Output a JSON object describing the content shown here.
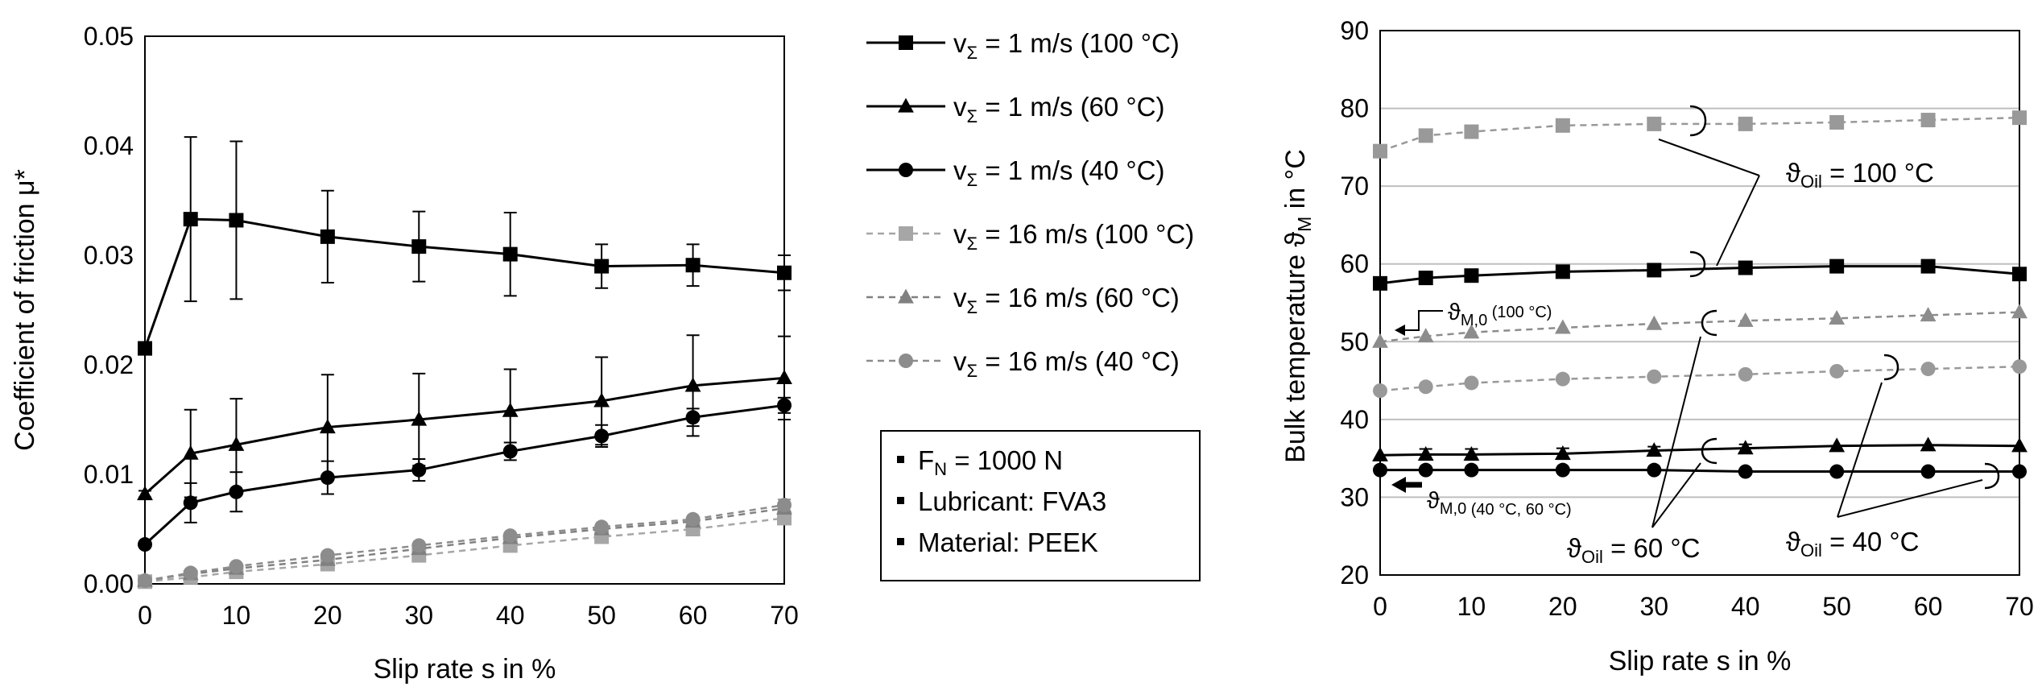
{
  "chart_data": [
    {
      "type": "line",
      "xlabel": "Slip rate s in %",
      "ylabel": "Coefficient of friction μ*",
      "xlim": [
        0,
        70
      ],
      "ylim": [
        0,
        0.05
      ],
      "x_ticks": [
        "0",
        "10",
        "20",
        "30",
        "40",
        "50",
        "60",
        "70"
      ],
      "y_ticks": [
        "0.00",
        "0.01",
        "0.02",
        "0.03",
        "0.04",
        "0.05"
      ],
      "grid": false,
      "x": [
        0,
        5,
        10,
        20,
        30,
        40,
        50,
        60,
        70
      ],
      "series": [
        {
          "name": "v_Σ = 1 m/s (100 °C)",
          "marker": "square",
          "color": "#000000",
          "dashed": false,
          "values": [
            0.0215,
            0.0333,
            0.0332,
            0.0317,
            0.0308,
            0.0301,
            0.029,
            0.0291,
            0.0284
          ],
          "errors": [
            0.0005,
            0.0075,
            0.0072,
            0.0042,
            0.0032,
            0.0038,
            0.002,
            0.0019,
            0.0016
          ]
        },
        {
          "name": "v_Σ = 1 m/s (60 °C)",
          "marker": "triangle",
          "color": "#000000",
          "dashed": false,
          "values": [
            0.0082,
            0.0119,
            0.0127,
            0.0143,
            0.015,
            0.0158,
            0.0167,
            0.0181,
            0.0188
          ],
          "errors": [
            0.0003,
            0.004,
            0.0042,
            0.0048,
            0.0042,
            0.0038,
            0.004,
            0.0046,
            0.0038
          ]
        },
        {
          "name": "v_Σ = 1 m/s (40 °C)",
          "marker": "circle",
          "color": "#000000",
          "dashed": false,
          "values": [
            0.0036,
            0.0074,
            0.0084,
            0.0097,
            0.0104,
            0.0121,
            0.0135,
            0.0152,
            0.0163
          ],
          "errors": [
            0.0002,
            0.0018,
            0.0018,
            0.0015,
            0.001,
            0.0008,
            0.001,
            0.0008,
            0.0007
          ]
        },
        {
          "name": "v_Σ = 16 m/s (100 °C)",
          "marker": "square",
          "color": "#a6a6a6",
          "dashed": true,
          "values": [
            0.0002,
            0.0006,
            0.0011,
            0.0018,
            0.0026,
            0.0035,
            0.0043,
            0.005,
            0.006
          ],
          "errors": [
            0,
            0,
            0,
            0,
            0,
            0,
            0,
            0,
            0.0005
          ]
        },
        {
          "name": "v_Σ = 16 m/s (60 °C)",
          "marker": "triangle",
          "color": "#808080",
          "dashed": true,
          "values": [
            0.0003,
            0.0009,
            0.0014,
            0.0022,
            0.0032,
            0.0042,
            0.005,
            0.0057,
            0.0069
          ],
          "errors": [
            0,
            0,
            0,
            0,
            0,
            0,
            0,
            0,
            0.0005
          ]
        },
        {
          "name": "v_Σ = 16 m/s (40 °C)",
          "marker": "circle",
          "color": "#8c8c8c",
          "dashed": true,
          "values": [
            0.0003,
            0.001,
            0.0016,
            0.0026,
            0.0035,
            0.0044,
            0.0052,
            0.0059,
            0.0072
          ],
          "errors": [
            0,
            0,
            0,
            0,
            0,
            0,
            0,
            0,
            0.0005
          ]
        }
      ]
    },
    {
      "type": "line",
      "xlabel": "Slip rate s in %",
      "ylabel_main": "Bulk temperature ϑ",
      "ylabel_sub": "M",
      "ylabel_tail": " in °C",
      "xlim": [
        0,
        70
      ],
      "ylim": [
        20,
        90
      ],
      "x_ticks": [
        "0",
        "10",
        "20",
        "30",
        "40",
        "50",
        "60",
        "70"
      ],
      "y_ticks": [
        "20",
        "30",
        "40",
        "50",
        "60",
        "70",
        "80",
        "90"
      ],
      "grid": true,
      "x": [
        0,
        5,
        10,
        20,
        30,
        40,
        50,
        60,
        70
      ],
      "series": [
        {
          "name": "v_Σ = 16 m/s (100 °C)",
          "marker": "square",
          "color": "#999999",
          "dashed": true,
          "values": [
            74.5,
            76.5,
            77.0,
            77.8,
            78.0,
            78.0,
            78.2,
            78.5,
            78.8
          ]
        },
        {
          "name": "v_Σ = 1 m/s (100 °C)",
          "marker": "square",
          "color": "#000000",
          "dashed": false,
          "values": [
            57.5,
            58.2,
            58.5,
            59.0,
            59.2,
            59.5,
            59.7,
            59.7,
            58.7
          ]
        },
        {
          "name": "v_Σ = 16 m/s (60 °C)",
          "marker": "triangle",
          "color": "#8c8c8c",
          "dashed": true,
          "values": [
            50.0,
            50.7,
            51.2,
            51.8,
            52.3,
            52.7,
            53.0,
            53.4,
            53.8
          ]
        },
        {
          "name": "v_Σ = 16 m/s (40 °C)",
          "marker": "circle",
          "color": "#999999",
          "dashed": true,
          "values": [
            43.7,
            44.2,
            44.7,
            45.2,
            45.5,
            45.8,
            46.2,
            46.5,
            46.8
          ]
        },
        {
          "name": "v_Σ = 1 m/s (60 °C)",
          "marker": "triangle",
          "color": "#000000",
          "dashed": false,
          "values": [
            35.4,
            35.5,
            35.5,
            35.6,
            36.0,
            36.3,
            36.6,
            36.7,
            36.6
          ],
          "errors": [
            0,
            0.7,
            0.7,
            0.7,
            0.5,
            0.5,
            0,
            0,
            0
          ]
        },
        {
          "name": "v_Σ = 1 m/s (40 °C)",
          "marker": "circle",
          "color": "#000000",
          "dashed": false,
          "values": [
            33.5,
            33.5,
            33.5,
            33.5,
            33.5,
            33.3,
            33.3,
            33.3,
            33.3
          ]
        }
      ],
      "annotations": {
        "oil100_main": "ϑ",
        "oil100_sub": "Oil",
        "oil100_tail": " = 100 °C",
        "oil60_main": "ϑ",
        "oil60_sub": "Oil",
        "oil60_tail": " = 60 °C",
        "oil40_main": "ϑ",
        "oil40_sub": "Oil",
        "oil40_tail": " = 40 °C",
        "m0_100_main": "ϑ",
        "m0_100_sub": "M,0",
        "m0_100_tail": " (100 °C)",
        "m0_low_main": "ϑ",
        "m0_low_sub": "M,0",
        "m0_low_tail": " (40 °C, 60 °C)"
      }
    }
  ],
  "legend": {
    "entries": [
      {
        "prefix": "v",
        "sub": "Σ",
        "text": " = 1 m/s (100 °C)",
        "marker": "square",
        "color": "#000000",
        "dashed": false
      },
      {
        "prefix": "v",
        "sub": "Σ",
        "text": " = 1 m/s (60 °C)",
        "marker": "triangle",
        "color": "#000000",
        "dashed": false
      },
      {
        "prefix": "v",
        "sub": "Σ",
        "text": " = 1 m/s (40 °C)",
        "marker": "circle",
        "color": "#000000",
        "dashed": false
      },
      {
        "prefix": "v",
        "sub": "Σ",
        "text": " = 16 m/s (100 °C)",
        "marker": "square",
        "color": "#a6a6a6",
        "dashed": true
      },
      {
        "prefix": "v",
        "sub": "Σ",
        "text": " = 16 m/s (60 °C)",
        "marker": "triangle",
        "color": "#808080",
        "dashed": true
      },
      {
        "prefix": "v",
        "sub": "Σ",
        "text": " = 16 m/s (40 °C)",
        "marker": "circle",
        "color": "#8c8c8c",
        "dashed": true
      }
    ]
  },
  "conditions": {
    "force_main": "F",
    "force_sub": "N",
    "force_tail": " = 1000 N",
    "lubricant": "Lubricant: FVA3",
    "material": "Material: PEEK"
  }
}
